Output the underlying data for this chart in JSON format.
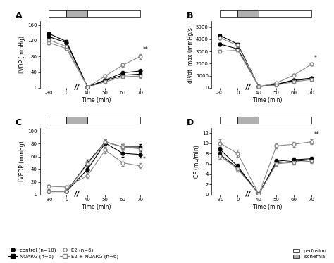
{
  "A_ylabel": "LVDP (mmHg)",
  "A_ylim": [
    0,
    170
  ],
  "A_yticks": [
    0,
    40,
    80,
    120,
    160
  ],
  "A_data": {
    "control": {
      "pre": [
        130,
        115
      ],
      "post": [
        2,
        20,
        38,
        43
      ]
    },
    "E2": {
      "pre": [
        115,
        100
      ],
      "post": [
        2,
        30,
        58,
        80
      ]
    },
    "NOARG": {
      "pre": [
        138,
        118
      ],
      "post": [
        2,
        18,
        32,
        35
      ]
    },
    "E2_NOARG": {
      "pre": [
        122,
        105
      ],
      "post": [
        2,
        15,
        28,
        30
      ]
    }
  },
  "A_err": {
    "control": {
      "pre": [
        5,
        4
      ],
      "post": [
        1,
        3,
        4,
        5
      ]
    },
    "E2": {
      "pre": [
        5,
        4
      ],
      "post": [
        1,
        4,
        5,
        6
      ]
    },
    "NOARG": {
      "pre": [
        4,
        4
      ],
      "post": [
        1,
        3,
        4,
        4
      ]
    },
    "E2_NOARG": {
      "pre": [
        4,
        4
      ],
      "post": [
        1,
        3,
        4,
        5
      ]
    }
  },
  "B_ylabel": "dP/dt  max (mmHg/s)",
  "B_ylim": [
    0,
    5500
  ],
  "B_yticks": [
    0,
    1000,
    2000,
    3000,
    4000,
    5000
  ],
  "B_data": {
    "control": {
      "pre": [
        3600,
        3200
      ],
      "post": [
        100,
        280,
        650,
        800
      ]
    },
    "E2": {
      "pre": [
        4100,
        3500
      ],
      "post": [
        100,
        400,
        1050,
        1950
      ]
    },
    "NOARG": {
      "pre": [
        4300,
        3600
      ],
      "post": [
        100,
        260,
        600,
        750
      ]
    },
    "E2_NOARG": {
      "pre": [
        3000,
        3100
      ],
      "post": [
        100,
        230,
        500,
        680
      ]
    }
  },
  "B_err": {
    "control": {
      "pre": [
        100,
        100
      ],
      "post": [
        30,
        40,
        70,
        80
      ]
    },
    "E2": {
      "pre": [
        130,
        100
      ],
      "post": [
        30,
        60,
        90,
        120
      ]
    },
    "NOARG": {
      "pre": [
        120,
        100
      ],
      "post": [
        30,
        50,
        70,
        80
      ]
    },
    "E2_NOARG": {
      "pre": [
        100,
        100
      ],
      "post": [
        30,
        40,
        60,
        70
      ]
    }
  },
  "C_ylabel": "LVEDP (mmHg)",
  "C_ylim": [
    0,
    105
  ],
  "C_yticks": [
    0,
    20,
    40,
    60,
    80,
    100
  ],
  "C_data": {
    "control": {
      "pre": [
        5,
        5
      ],
      "post": [
        40,
        81,
        65,
        63
      ]
    },
    "E2": {
      "pre": [
        13,
        12
      ],
      "post": [
        30,
        70,
        50,
        45
      ]
    },
    "NOARG": {
      "pre": [
        5,
        5
      ],
      "post": [
        50,
        83,
        75,
        75
      ]
    },
    "E2_NOARG": {
      "pre": [
        5,
        5
      ],
      "post": [
        48,
        83,
        75,
        72
      ]
    }
  },
  "C_err": {
    "control": {
      "pre": [
        1,
        1
      ],
      "post": [
        5,
        4,
        5,
        5
      ]
    },
    "E2": {
      "pre": [
        2,
        2
      ],
      "post": [
        5,
        5,
        5,
        4
      ]
    },
    "NOARG": {
      "pre": [
        1,
        1
      ],
      "post": [
        5,
        4,
        4,
        4
      ]
    },
    "E2_NOARG": {
      "pre": [
        1,
        1
      ],
      "post": [
        5,
        4,
        4,
        5
      ]
    }
  },
  "D_ylabel": "CF (mL/min)",
  "D_ylim": [
    0,
    13
  ],
  "D_yticks": [
    0,
    2,
    4,
    6,
    8,
    10,
    12
  ],
  "D_data": {
    "control": {
      "pre": [
        8.8,
        5.5
      ],
      "post": [
        0.1,
        6.5,
        6.8,
        7.0
      ]
    },
    "E2": {
      "pre": [
        10.0,
        8.0
      ],
      "post": [
        0.1,
        9.5,
        9.8,
        10.3
      ]
    },
    "NOARG": {
      "pre": [
        7.8,
        5.2
      ],
      "post": [
        0.1,
        6.2,
        6.5,
        6.8
      ]
    },
    "E2_NOARG": {
      "pre": [
        7.5,
        5.0
      ],
      "post": [
        0.1,
        6.0,
        6.3,
        6.5
      ]
    }
  },
  "D_err": {
    "control": {
      "pre": [
        0.5,
        0.5
      ],
      "post": [
        0.05,
        0.4,
        0.4,
        0.4
      ]
    },
    "E2": {
      "pre": [
        0.8,
        0.7
      ],
      "post": [
        0.05,
        0.5,
        0.5,
        0.5
      ]
    },
    "NOARG": {
      "pre": [
        0.5,
        0.5
      ],
      "post": [
        0.05,
        0.4,
        0.4,
        0.4
      ]
    },
    "E2_NOARG": {
      "pre": [
        0.5,
        0.5
      ],
      "post": [
        0.05,
        0.4,
        0.4,
        0.4
      ]
    }
  },
  "series_styles": {
    "control": {
      "color": "#000000",
      "marker": "o",
      "fillstyle": "full",
      "linestyle": "-"
    },
    "E2": {
      "color": "#888888",
      "marker": "o",
      "fillstyle": "none",
      "linestyle": "-"
    },
    "NOARG": {
      "color": "#000000",
      "marker": "s",
      "fillstyle": "full",
      "linestyle": "-"
    },
    "E2_NOARG": {
      "color": "#888888",
      "marker": "s",
      "fillstyle": "none",
      "linestyle": "-"
    }
  },
  "legend_labels": {
    "control": "control (n=10)",
    "E2": "E2 (n=6)",
    "NOARG": "NOARG (n=6)",
    "E2_NOARG": "E2 + NOARG (n=6)"
  },
  "sig_A": {
    "series": "E2",
    "text": "**"
  },
  "sig_B": {
    "series": "E2",
    "text": "*"
  },
  "sig_C": {
    "series": "E2",
    "text": "*"
  },
  "sig_D": {
    "series": "E2",
    "text": "**"
  }
}
